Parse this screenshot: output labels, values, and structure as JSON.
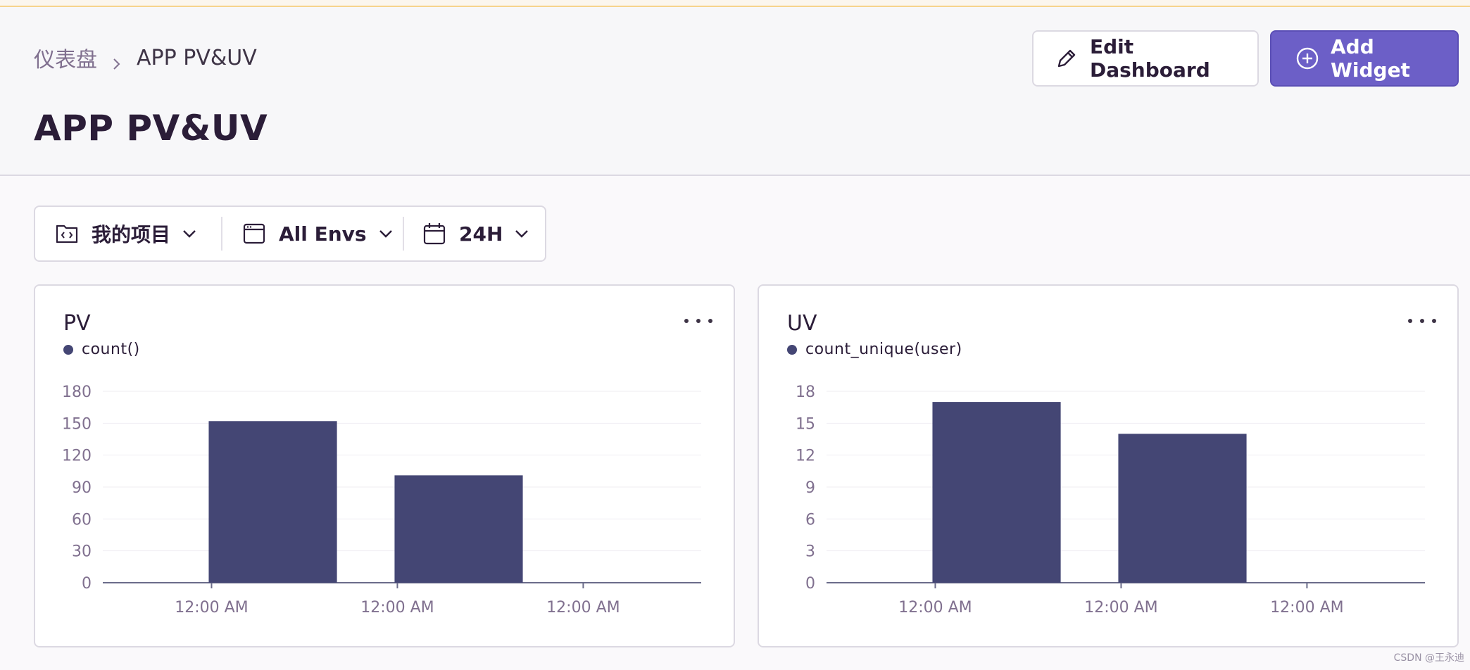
{
  "breadcrumb": {
    "root": "仪表盘",
    "current": "APP PV&UV"
  },
  "page_title": "APP PV&UV",
  "actions": {
    "edit_label": "Edit Dashboard",
    "add_label": "Add Widget"
  },
  "filters": {
    "project": "我的项目",
    "environment": "All Envs",
    "period": "24H"
  },
  "colors": {
    "accent": "#6c5fc7",
    "bar": "#444674"
  },
  "widgets": [
    {
      "title": "PV",
      "series_label": "count()",
      "chart_data": {
        "type": "bar",
        "categories": [
          "12:00 AM",
          "12:00 AM",
          "12:00 AM"
        ],
        "values": [
          152,
          101,
          0
        ],
        "yticks": [
          0,
          30,
          60,
          90,
          120,
          150,
          180
        ],
        "ylim": [
          0,
          180
        ],
        "series": [
          {
            "name": "count()",
            "values": [
              152,
              101,
              0
            ]
          }
        ],
        "xlabel": "",
        "ylabel": "",
        "grid": true,
        "legend": "top-left"
      }
    },
    {
      "title": "UV",
      "series_label": "count_unique(user)",
      "chart_data": {
        "type": "bar",
        "categories": [
          "12:00 AM",
          "12:00 AM",
          "12:00 AM"
        ],
        "values": [
          17,
          14,
          0
        ],
        "yticks": [
          0,
          3,
          6,
          9,
          12,
          15,
          18
        ],
        "ylim": [
          0,
          18
        ],
        "series": [
          {
            "name": "count_unique(user)",
            "values": [
              17,
              14,
              0
            ]
          }
        ],
        "xlabel": "",
        "ylabel": "",
        "grid": true,
        "legend": "top-left"
      }
    }
  ],
  "watermark": "CSDN @王永迪"
}
